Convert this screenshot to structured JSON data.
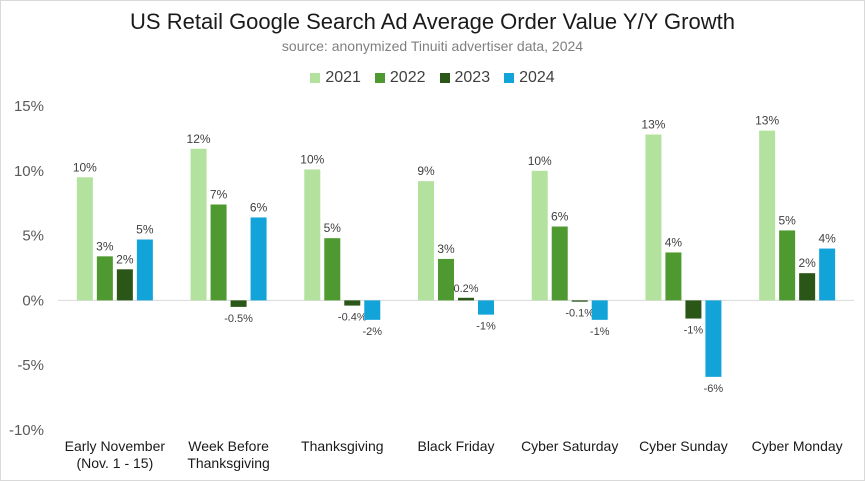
{
  "chart_data": {
    "type": "bar",
    "title": "US Retail Google Search Ad Average Order Value Y/Y Growth",
    "subtitle": "source: anonymized Tinuiti advertiser data, 2024",
    "categories": [
      [
        "Early November",
        "(Nov. 1 - 15)"
      ],
      [
        "Week Before",
        "Thanksgiving"
      ],
      [
        "Thanksgiving"
      ],
      [
        "Black Friday"
      ],
      [
        "Cyber Saturday"
      ],
      [
        "Cyber Sunday"
      ],
      [
        "Cyber Monday"
      ]
    ],
    "series": [
      {
        "name": "2021",
        "color": "#b3e29e",
        "values": [
          9.5,
          11.7,
          10.1,
          9.2,
          10.0,
          12.8,
          13.1
        ],
        "labels": [
          "10%",
          "12%",
          "10%",
          "9%",
          "10%",
          "13%",
          "13%"
        ]
      },
      {
        "name": "2022",
        "color": "#4f9a30",
        "values": [
          3.4,
          7.4,
          4.8,
          3.2,
          5.7,
          3.7,
          5.4
        ],
        "labels": [
          "3%",
          "7%",
          "5%",
          "3%",
          "6%",
          "4%",
          "5%"
        ]
      },
      {
        "name": "2023",
        "color": "#2a5618",
        "values": [
          2.4,
          -0.5,
          -0.4,
          0.2,
          -0.1,
          -1.4,
          2.1
        ],
        "labels": [
          "2%",
          "-0.5%",
          "-0.4%",
          "0.2%",
          "-0.1%",
          "-1%",
          "2%"
        ]
      },
      {
        "name": "2024",
        "color": "#12a3d8",
        "values": [
          4.7,
          6.4,
          -1.5,
          -1.1,
          -1.5,
          -5.9,
          4.0
        ],
        "labels": [
          "5%",
          "6%",
          "-2%",
          "-1%",
          "-1%",
          "-6%",
          "4%"
        ]
      }
    ],
    "y_ticks": [
      "15%",
      "10%",
      "5%",
      "0%",
      "-5%",
      "-10%"
    ],
    "ylim": [
      -10,
      15
    ],
    "xlabel": "",
    "ylabel": "",
    "legend": "top-center",
    "grid": false
  }
}
